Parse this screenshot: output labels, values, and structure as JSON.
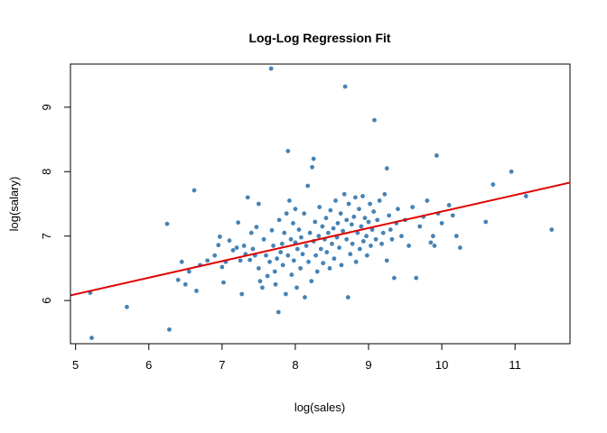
{
  "chart_data": {
    "type": "scatter",
    "title": "Log-Log Regression Fit",
    "xlabel": "log(sales)",
    "ylabel": "log(salary)",
    "xlim": [
      4.93,
      11.75
    ],
    "ylim": [
      5.33,
      9.67
    ],
    "x_ticks": [
      5,
      6,
      7,
      8,
      9,
      10,
      11
    ],
    "y_ticks": [
      6,
      7,
      8,
      9
    ],
    "grid": false,
    "legend": "none",
    "point_color": "#4682B4",
    "fit_color": "#E00000",
    "fit_line": {
      "x": [
        4.93,
        11.75
      ],
      "y": [
        6.08,
        7.83
      ]
    },
    "points": [
      [
        5.2,
        6.12
      ],
      [
        5.22,
        5.42
      ],
      [
        5.7,
        5.9
      ],
      [
        6.25,
        7.19
      ],
      [
        6.28,
        5.55
      ],
      [
        6.4,
        6.32
      ],
      [
        6.45,
        6.6
      ],
      [
        6.5,
        6.25
      ],
      [
        6.55,
        6.45
      ],
      [
        6.62,
        7.71
      ],
      [
        6.65,
        6.15
      ],
      [
        6.7,
        6.55
      ],
      [
        6.8,
        6.62
      ],
      [
        6.9,
        6.7
      ],
      [
        6.95,
        6.86
      ],
      [
        6.97,
        6.99
      ],
      [
        7.0,
        6.52
      ],
      [
        7.02,
        6.28
      ],
      [
        7.05,
        6.6
      ],
      [
        7.1,
        6.93
      ],
      [
        7.15,
        6.78
      ],
      [
        7.2,
        6.82
      ],
      [
        7.22,
        7.21
      ],
      [
        7.25,
        6.62
      ],
      [
        7.27,
        6.1
      ],
      [
        7.3,
        6.85
      ],
      [
        7.32,
        6.72
      ],
      [
        7.35,
        7.6
      ],
      [
        7.38,
        6.63
      ],
      [
        7.4,
        7.05
      ],
      [
        7.42,
        6.8
      ],
      [
        7.45,
        6.7
      ],
      [
        7.47,
        7.14
      ],
      [
        7.5,
        6.5
      ],
      [
        7.5,
        7.5
      ],
      [
        7.52,
        6.3
      ],
      [
        7.55,
        6.2
      ],
      [
        7.57,
        6.95
      ],
      [
        7.6,
        6.7
      ],
      [
        7.62,
        6.38
      ],
      [
        7.65,
        6.6
      ],
      [
        7.67,
        9.6
      ],
      [
        7.68,
        7.09
      ],
      [
        7.7,
        6.85
      ],
      [
        7.72,
        6.45
      ],
      [
        7.73,
        6.25
      ],
      [
        7.75,
        6.65
      ],
      [
        7.77,
        5.82
      ],
      [
        7.78,
        7.25
      ],
      [
        7.8,
        6.75
      ],
      [
        7.82,
        6.88
      ],
      [
        7.83,
        6.55
      ],
      [
        7.85,
        7.05
      ],
      [
        7.87,
        6.1
      ],
      [
        7.88,
        7.35
      ],
      [
        7.9,
        8.32
      ],
      [
        7.9,
        6.7
      ],
      [
        7.92,
        7.55
      ],
      [
        7.94,
        6.95
      ],
      [
        7.95,
        6.4
      ],
      [
        7.97,
        7.2
      ],
      [
        7.98,
        6.62
      ],
      [
        8.0,
        6.9
      ],
      [
        8.0,
        7.42
      ],
      [
        8.02,
        6.2
      ],
      [
        8.03,
        6.8
      ],
      [
        8.05,
        7.1
      ],
      [
        8.07,
        6.5
      ],
      [
        8.08,
        6.98
      ],
      [
        8.1,
        6.72
      ],
      [
        8.12,
        7.35
      ],
      [
        8.13,
        6.05
      ],
      [
        8.15,
        6.85
      ],
      [
        8.17,
        7.78
      ],
      [
        8.18,
        6.6
      ],
      [
        8.2,
        7.05
      ],
      [
        8.22,
        6.3
      ],
      [
        8.23,
        8.07
      ],
      [
        8.25,
        8.2
      ],
      [
        8.25,
        6.92
      ],
      [
        8.27,
        7.22
      ],
      [
        8.28,
        6.7
      ],
      [
        8.3,
        6.45
      ],
      [
        8.32,
        7.0
      ],
      [
        8.33,
        7.45
      ],
      [
        8.35,
        6.8
      ],
      [
        8.37,
        7.15
      ],
      [
        8.38,
        6.58
      ],
      [
        8.4,
        6.95
      ],
      [
        8.42,
        7.28
      ],
      [
        8.43,
        6.75
      ],
      [
        8.45,
        7.05
      ],
      [
        8.47,
        6.5
      ],
      [
        8.48,
        7.4
      ],
      [
        8.5,
        6.88
      ],
      [
        8.52,
        7.12
      ],
      [
        8.53,
        6.65
      ],
      [
        8.55,
        7.55
      ],
      [
        8.57,
        6.98
      ],
      [
        8.58,
        7.2
      ],
      [
        8.6,
        6.82
      ],
      [
        8.62,
        7.35
      ],
      [
        8.63,
        6.55
      ],
      [
        8.65,
        7.08
      ],
      [
        8.67,
        7.65
      ],
      [
        8.68,
        9.32
      ],
      [
        8.7,
        6.95
      ],
      [
        8.7,
        7.25
      ],
      [
        8.72,
        6.05
      ],
      [
        8.73,
        7.5
      ],
      [
        8.75,
        6.72
      ],
      [
        8.77,
        7.18
      ],
      [
        8.78,
        6.88
      ],
      [
        8.8,
        7.3
      ],
      [
        8.82,
        7.6
      ],
      [
        8.83,
        6.6
      ],
      [
        8.85,
        7.05
      ],
      [
        8.87,
        7.42
      ],
      [
        8.88,
        6.8
      ],
      [
        8.9,
        7.15
      ],
      [
        8.92,
        7.62
      ],
      [
        8.93,
        6.92
      ],
      [
        8.95,
        7.28
      ],
      [
        8.97,
        7.0
      ],
      [
        8.98,
        6.7
      ],
      [
        9.0,
        7.22
      ],
      [
        9.02,
        7.5
      ],
      [
        9.03,
        6.85
      ],
      [
        9.05,
        7.1
      ],
      [
        9.07,
        7.38
      ],
      [
        9.08,
        8.8
      ],
      [
        9.1,
        6.95
      ],
      [
        9.12,
        7.25
      ],
      [
        9.15,
        7.55
      ],
      [
        9.18,
        6.88
      ],
      [
        9.2,
        7.05
      ],
      [
        9.22,
        7.65
      ],
      [
        9.25,
        8.05
      ],
      [
        9.25,
        6.62
      ],
      [
        9.28,
        7.32
      ],
      [
        9.3,
        7.1
      ],
      [
        9.32,
        6.95
      ],
      [
        9.35,
        6.35
      ],
      [
        9.38,
        7.2
      ],
      [
        9.4,
        7.42
      ],
      [
        9.45,
        7.0
      ],
      [
        9.5,
        7.25
      ],
      [
        9.55,
        6.85
      ],
      [
        9.6,
        7.45
      ],
      [
        9.65,
        6.35
      ],
      [
        9.7,
        7.15
      ],
      [
        9.75,
        7.3
      ],
      [
        9.8,
        7.55
      ],
      [
        9.85,
        6.9
      ],
      [
        9.88,
        7.0
      ],
      [
        9.9,
        6.85
      ],
      [
        9.93,
        8.25
      ],
      [
        9.95,
        7.35
      ],
      [
        10.0,
        7.2
      ],
      [
        10.1,
        7.48
      ],
      [
        10.15,
        7.32
      ],
      [
        10.2,
        7.0
      ],
      [
        10.25,
        6.82
      ],
      [
        10.6,
        7.22
      ],
      [
        10.7,
        7.8
      ],
      [
        10.95,
        8.0
      ],
      [
        11.15,
        7.62
      ],
      [
        11.5,
        7.1
      ]
    ]
  }
}
